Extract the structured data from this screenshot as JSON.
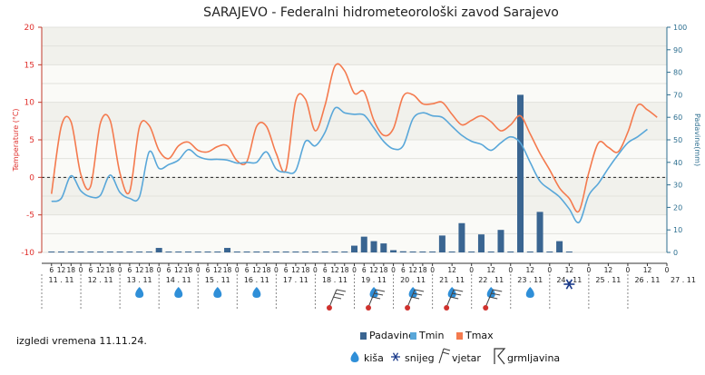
{
  "chart_data": {
    "type": "line",
    "title": "SARAJEVO - Federalni hidrometeorološki zavod Sarajevo",
    "ylabel_left": "Temperature (°C)",
    "ylabel_right": "Padavine(mm)",
    "ylim_left": [
      -10,
      20
    ],
    "ylim_right": [
      0,
      100
    ],
    "yticks_left": [
      "-10",
      "-5",
      "0",
      "5",
      "10",
      "15",
      "20"
    ],
    "yticks_right": [
      "0",
      "10",
      "20",
      "30",
      "40",
      "50",
      "60",
      "70",
      "80",
      "90",
      "100"
    ],
    "hour_labels": [
      [
        "6",
        "11",
        "12",
        "11",
        "18",
        "11"
      ],
      [
        "0",
        "12",
        "6",
        "12",
        "12",
        "12",
        "18",
        "12"
      ],
      [
        "0",
        "13",
        "6",
        "13",
        "12",
        "13",
        "18",
        "13"
      ],
      [
        "0",
        "14",
        "6",
        "14",
        "12",
        "14",
        "18",
        "14"
      ],
      [
        "0",
        "15",
        "6",
        "15",
        "12",
        "15",
        "18",
        "15"
      ],
      [
        "0",
        "16",
        "6",
        "16",
        "12",
        "16",
        "18",
        "16"
      ],
      [
        "0",
        "17",
        "6",
        "17",
        "12",
        "17",
        "18",
        "17"
      ],
      [
        "0",
        "18",
        "6",
        "18",
        "12",
        "18",
        "18",
        "18"
      ],
      [
        "0",
        "19",
        "6",
        "19",
        "12",
        "19",
        "18",
        "19"
      ],
      [
        "0",
        "20",
        "6",
        "20",
        "12",
        "20",
        "18",
        "20"
      ],
      [
        "0",
        "21",
        "12",
        "21"
      ],
      [
        "0",
        "22",
        "12",
        "22"
      ],
      [
        "0",
        "23",
        "12",
        "23"
      ],
      [
        "0",
        "24",
        "12",
        "24"
      ],
      [
        "0",
        "25",
        "12",
        "25"
      ],
      [
        "0",
        "26",
        "12",
        "26"
      ],
      [
        "0",
        "27"
      ]
    ],
    "day_labels": [
      "11 . 11",
      "12 . 11",
      "13 . 11",
      "14 . 11",
      "15 . 11",
      "16 . 11",
      "17 . 11",
      "18 . 11",
      "19 . 11",
      "20 . 11",
      "21 . 11",
      "22 . 11",
      "23 . 11",
      "24 . 11",
      "25 . 11",
      "26 . 11",
      "27 . 11"
    ],
    "series": [
      {
        "name": "Tmax",
        "color": "#f47a4e",
        "points": [
          [
            11.25,
            -2.2
          ],
          [
            11.5,
            6.8
          ],
          [
            11.75,
            7.4
          ],
          [
            12.0,
            0.4
          ],
          [
            12.25,
            -1.2
          ],
          [
            12.5,
            7.2
          ],
          [
            12.75,
            7.6
          ],
          [
            13.0,
            0.6
          ],
          [
            13.25,
            -1.9
          ],
          [
            13.5,
            6.7
          ],
          [
            13.75,
            6.9
          ],
          [
            14.0,
            3.6
          ],
          [
            14.25,
            2.5
          ],
          [
            14.5,
            4.2
          ],
          [
            14.75,
            4.7
          ],
          [
            15.0,
            3.6
          ],
          [
            15.25,
            3.4
          ],
          [
            15.5,
            4.1
          ],
          [
            15.75,
            4.2
          ],
          [
            16.0,
            2.2
          ],
          [
            16.25,
            2.1
          ],
          [
            16.5,
            6.8
          ],
          [
            16.75,
            6.8
          ],
          [
            17.0,
            3.2
          ],
          [
            17.25,
            1.0
          ],
          [
            17.5,
            10.2
          ],
          [
            17.75,
            10.4
          ],
          [
            18.0,
            6.2
          ],
          [
            18.25,
            9.6
          ],
          [
            18.5,
            14.8
          ],
          [
            18.75,
            14.2
          ],
          [
            19.0,
            11.2
          ],
          [
            19.25,
            11.4
          ],
          [
            19.5,
            7.6
          ],
          [
            19.75,
            5.6
          ],
          [
            20.0,
            6.5
          ],
          [
            20.25,
            10.8
          ],
          [
            20.5,
            11.0
          ],
          [
            20.75,
            9.8
          ],
          [
            21.0,
            9.8
          ],
          [
            21.25,
            10.0
          ],
          [
            21.5,
            8.4
          ],
          [
            21.75,
            7.0
          ],
          [
            22.0,
            7.6
          ],
          [
            22.25,
            8.2
          ],
          [
            22.5,
            7.4
          ],
          [
            22.75,
            6.2
          ],
          [
            23.0,
            7.0
          ],
          [
            23.25,
            8.2
          ],
          [
            23.5,
            5.8
          ],
          [
            23.75,
            3.2
          ],
          [
            24.0,
            1.0
          ],
          [
            24.25,
            -1.4
          ],
          [
            24.5,
            -2.8
          ],
          [
            24.75,
            -4.5
          ],
          [
            25.0,
            0.6
          ],
          [
            25.25,
            4.6
          ],
          [
            25.5,
            4.0
          ],
          [
            25.75,
            3.4
          ],
          [
            26.0,
            6.0
          ],
          [
            26.25,
            9.6
          ],
          [
            26.5,
            9.0
          ],
          [
            26.75,
            8.0
          ]
        ]
      },
      {
        "name": "Tmin",
        "color": "#59a7d9",
        "points": [
          [
            11.25,
            -3.2
          ],
          [
            11.5,
            -2.8
          ],
          [
            11.75,
            0.2
          ],
          [
            12.0,
            -1.8
          ],
          [
            12.25,
            -2.6
          ],
          [
            12.5,
            -2.4
          ],
          [
            12.75,
            0.3
          ],
          [
            13.0,
            -2.0
          ],
          [
            13.25,
            -2.8
          ],
          [
            13.5,
            -2.6
          ],
          [
            13.75,
            3.4
          ],
          [
            14.0,
            1.2
          ],
          [
            14.25,
            1.7
          ],
          [
            14.5,
            2.3
          ],
          [
            14.75,
            3.7
          ],
          [
            15.0,
            2.8
          ],
          [
            15.25,
            2.4
          ],
          [
            15.5,
            2.4
          ],
          [
            15.75,
            2.3
          ],
          [
            16.0,
            1.9
          ],
          [
            16.25,
            2.0
          ],
          [
            16.5,
            2.0
          ],
          [
            16.75,
            3.4
          ],
          [
            17.0,
            1.1
          ],
          [
            17.25,
            0.7
          ],
          [
            17.5,
            0.9
          ],
          [
            17.75,
            4.8
          ],
          [
            18.0,
            4.2
          ],
          [
            18.25,
            6.0
          ],
          [
            18.5,
            9.2
          ],
          [
            18.75,
            8.6
          ],
          [
            19.0,
            8.4
          ],
          [
            19.25,
            8.3
          ],
          [
            19.5,
            6.6
          ],
          [
            19.75,
            4.8
          ],
          [
            20.0,
            3.8
          ],
          [
            20.25,
            4.2
          ],
          [
            20.5,
            7.8
          ],
          [
            20.75,
            8.6
          ],
          [
            21.0,
            8.2
          ],
          [
            21.25,
            8.0
          ],
          [
            21.5,
            6.8
          ],
          [
            21.75,
            5.6
          ],
          [
            22.0,
            4.8
          ],
          [
            22.25,
            4.4
          ],
          [
            22.5,
            3.6
          ],
          [
            22.75,
            4.6
          ],
          [
            23.0,
            5.4
          ],
          [
            23.25,
            4.6
          ],
          [
            23.5,
            2.0
          ],
          [
            23.75,
            -0.5
          ],
          [
            24.0,
            -1.6
          ],
          [
            24.25,
            -2.6
          ],
          [
            24.5,
            -4.2
          ],
          [
            24.75,
            -6.0
          ],
          [
            25.0,
            -2.4
          ],
          [
            25.25,
            -0.8
          ],
          [
            25.5,
            1.2
          ],
          [
            25.75,
            3.0
          ],
          [
            26.0,
            4.6
          ],
          [
            26.25,
            5.4
          ],
          [
            26.5,
            6.4
          ]
        ]
      }
    ],
    "bars": {
      "name": "Padavine",
      "color": "#3a6591",
      "values": [
        [
          11.25,
          0
        ],
        [
          11.5,
          0
        ],
        [
          11.75,
          0
        ],
        [
          12.0,
          0
        ],
        [
          12.25,
          0
        ],
        [
          12.5,
          0
        ],
        [
          12.75,
          0
        ],
        [
          13.0,
          0
        ],
        [
          13.25,
          0
        ],
        [
          13.5,
          0
        ],
        [
          13.75,
          0
        ],
        [
          14.0,
          2
        ],
        [
          14.25,
          0
        ],
        [
          14.5,
          0
        ],
        [
          14.75,
          0
        ],
        [
          15.0,
          0
        ],
        [
          15.25,
          0
        ],
        [
          15.5,
          0
        ],
        [
          15.75,
          2
        ],
        [
          16.0,
          0
        ],
        [
          16.25,
          0
        ],
        [
          16.5,
          0
        ],
        [
          16.75,
          0
        ],
        [
          17.0,
          0
        ],
        [
          17.25,
          0
        ],
        [
          17.5,
          0
        ],
        [
          17.75,
          0
        ],
        [
          18.0,
          0
        ],
        [
          18.25,
          0
        ],
        [
          18.5,
          0
        ],
        [
          18.75,
          0
        ],
        [
          19.0,
          3
        ],
        [
          19.25,
          7
        ],
        [
          19.5,
          5
        ],
        [
          19.75,
          4
        ],
        [
          20.0,
          1
        ],
        [
          20.25,
          0.5
        ],
        [
          20.5,
          0
        ],
        [
          20.75,
          0
        ],
        [
          21.0,
          0
        ],
        [
          21.25,
          7.5
        ],
        [
          21.5,
          0
        ],
        [
          21.75,
          13
        ],
        [
          22.0,
          0
        ],
        [
          22.25,
          8
        ],
        [
          22.5,
          0
        ],
        [
          22.75,
          10
        ],
        [
          23.0,
          0
        ],
        [
          23.25,
          70
        ],
        [
          23.5,
          0
        ],
        [
          23.75,
          18
        ],
        [
          24.0,
          0
        ],
        [
          24.25,
          5
        ],
        [
          24.5,
          0
        ]
      ]
    },
    "weather_icons": [
      {
        "day": 13,
        "type": "kiša"
      },
      {
        "day": 14,
        "type": "kiša"
      },
      {
        "day": 15,
        "type": "kiša"
      },
      {
        "day": 16,
        "type": "kiša"
      },
      {
        "day": 18,
        "type": "vjetar"
      },
      {
        "day": 19,
        "type": "kiša"
      },
      {
        "day": 19,
        "type": "vjetar"
      },
      {
        "day": 20,
        "type": "kiša"
      },
      {
        "day": 20,
        "type": "vjetar"
      },
      {
        "day": 21,
        "type": "kiša"
      },
      {
        "day": 21,
        "type": "vjetar"
      },
      {
        "day": 22,
        "type": "kiša"
      },
      {
        "day": 22,
        "type": "vjetar"
      },
      {
        "day": 23,
        "type": "kiša"
      },
      {
        "day": 24,
        "type": "snijeg"
      }
    ],
    "legend": {
      "items": [
        {
          "label": "Padavine",
          "color": "#3a6591",
          "kind": "bar"
        },
        {
          "label": "Tmin",
          "color": "#59a7d9",
          "kind": "line"
        },
        {
          "label": "Tmax",
          "color": "#f47a4e",
          "kind": "line"
        }
      ],
      "icons": [
        {
          "label": "kiša",
          "kind": "rain-icon"
        },
        {
          "label": "snijeg",
          "kind": "snow-icon"
        },
        {
          "label": "vjetar",
          "kind": "wind-icon"
        },
        {
          "label": "grmljavina",
          "kind": "thunder-icon"
        }
      ]
    },
    "forecast_note": "izgledi vremena 11.11.24."
  }
}
